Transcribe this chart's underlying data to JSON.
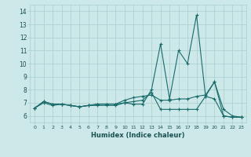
{
  "xlabel": "Humidex (Indice chaleur)",
  "background_color": "#cce8e8",
  "grid_color": "#aacece",
  "line_color": "#1a6b6b",
  "x": [
    0,
    1,
    2,
    3,
    4,
    5,
    6,
    7,
    8,
    9,
    10,
    11,
    12,
    13,
    14,
    15,
    16,
    17,
    18,
    19,
    20,
    21,
    22,
    23
  ],
  "line1": [
    6.6,
    7.1,
    6.9,
    6.9,
    6.8,
    6.7,
    6.8,
    6.9,
    6.9,
    6.9,
    7.0,
    6.9,
    6.9,
    8.0,
    11.5,
    7.3,
    11.0,
    10.0,
    13.7,
    7.5,
    8.6,
    6.0,
    5.9,
    5.9
  ],
  "line2": [
    6.6,
    7.1,
    6.9,
    6.9,
    6.8,
    6.7,
    6.8,
    6.9,
    6.9,
    6.9,
    7.2,
    7.4,
    7.5,
    7.6,
    7.2,
    7.2,
    7.3,
    7.3,
    7.5,
    7.6,
    8.6,
    6.5,
    6.0,
    5.9
  ],
  "line3": [
    6.6,
    7.0,
    6.8,
    6.9,
    6.8,
    6.7,
    6.8,
    6.8,
    6.8,
    6.8,
    7.0,
    7.1,
    7.2,
    7.8,
    6.5,
    6.5,
    6.5,
    6.5,
    6.5,
    7.5,
    7.3,
    6.0,
    5.9,
    5.9
  ],
  "ylim": [
    5.5,
    14.5
  ],
  "xlim": [
    -0.5,
    23.5
  ],
  "yticks": [
    6,
    7,
    8,
    9,
    10,
    11,
    12,
    13,
    14
  ],
  "xticks": [
    0,
    1,
    2,
    3,
    4,
    5,
    6,
    7,
    8,
    9,
    10,
    11,
    12,
    13,
    14,
    15,
    16,
    17,
    18,
    19,
    20,
    21,
    22,
    23
  ]
}
